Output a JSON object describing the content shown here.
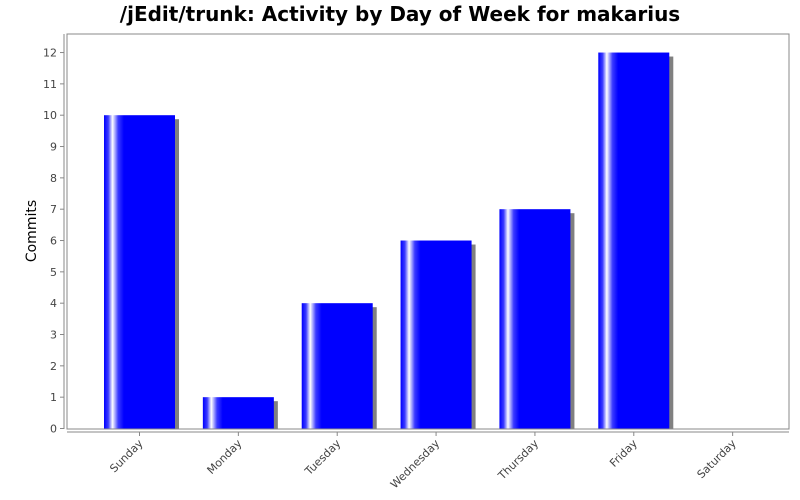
{
  "chart_data": {
    "type": "bar",
    "title": "/jEdit/trunk: Activity by Day of Week for makarius",
    "xlabel": "",
    "ylabel": "Commits",
    "categories": [
      "Sunday",
      "Monday",
      "Tuesday",
      "Wednesday",
      "Thursday",
      "Friday",
      "Saturday"
    ],
    "values": [
      10,
      1,
      4,
      6,
      7,
      12,
      0
    ],
    "ylim": [
      0,
      12.5
    ],
    "yticks": [
      0,
      1,
      2,
      3,
      4,
      5,
      6,
      7,
      8,
      9,
      10,
      11,
      12
    ],
    "grid": false,
    "legend": "none",
    "colors": {
      "bar": "#0000ff",
      "bar_highlight": "#ffffff",
      "shadow": "#808080",
      "axis": "#888888"
    }
  }
}
